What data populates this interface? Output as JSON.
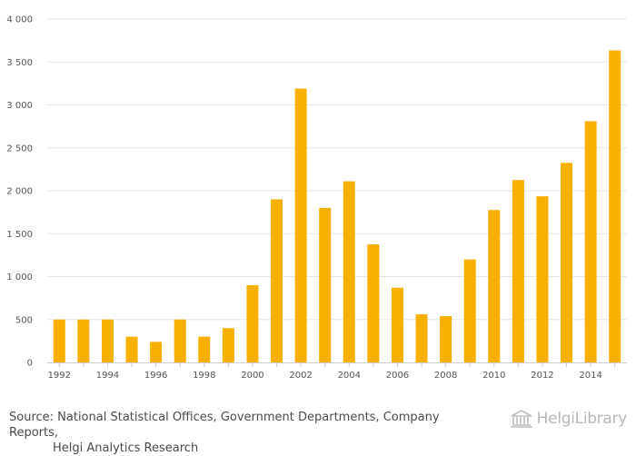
{
  "chart_data": {
    "type": "bar",
    "title": "",
    "xlabel": "",
    "ylabel": "",
    "ylim": [
      0,
      4000
    ],
    "y_ticks": [
      "0",
      "500",
      "1 000",
      "1 500",
      "2 000",
      "2 500",
      "3 000",
      "3 500",
      "4 000"
    ],
    "y_tick_values": [
      0,
      500,
      1000,
      1500,
      2000,
      2500,
      3000,
      3500,
      4000
    ],
    "categories": [
      "1992",
      "1993",
      "1994",
      "1995",
      "1996",
      "1997",
      "1998",
      "1999",
      "2000",
      "2001",
      "2002",
      "2003",
      "2004",
      "2005",
      "2006",
      "2007",
      "2008",
      "2009",
      "2010",
      "2011",
      "2012",
      "2013",
      "2014",
      "2015"
    ],
    "x_tick_labels": [
      "1992",
      "1994",
      "1996",
      "1998",
      "2000",
      "2002",
      "2004",
      "2006",
      "2008",
      "2010",
      "2012",
      "2014"
    ],
    "values": [
      500,
      500,
      500,
      300,
      240,
      500,
      300,
      400,
      900,
      1900,
      3190,
      1800,
      2110,
      1375,
      870,
      560,
      540,
      1200,
      1775,
      2125,
      1935,
      2325,
      2810,
      3635
    ],
    "bar_color": "#F7AF00",
    "grid": true,
    "grid_color": "#e6e6e6"
  },
  "source": {
    "line1": "Source: National Statistical Offices, Government Departments, Company Reports,",
    "line2": "Helgi Analytics Research"
  },
  "logo": {
    "text": "HelgiLibrary",
    "icon": "library-building-icon"
  }
}
